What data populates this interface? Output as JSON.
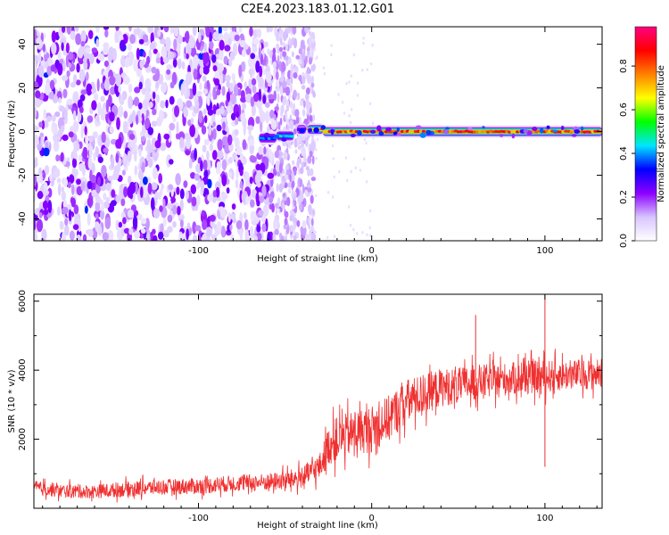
{
  "title": "C2E4.2023.183.01.12.G01",
  "chart_data": [
    {
      "type": "heatmap",
      "xlabel": "Height of straight line (km)",
      "ylabel": "Frequency (Hz)",
      "xlim": [
        -195,
        133
      ],
      "ylim": [
        -50,
        48
      ],
      "x_ticks": [
        "-100",
        "0",
        "100"
      ],
      "x_tick_values": [
        -100,
        0,
        100
      ],
      "y_ticks": [
        "-40",
        "-20",
        "0",
        "20",
        "40"
      ],
      "y_tick_values": [
        -40,
        -20,
        0,
        20,
        40
      ],
      "noise_region_x": [
        -195,
        -33
      ],
      "dense_noise_region_x": [
        -195,
        -55
      ],
      "signal_line_y": 0,
      "signal_segments": [
        {
          "x0": -65,
          "x1": -55,
          "y": -3,
          "amp": 0.45
        },
        {
          "x0": -55,
          "x1": -45,
          "y": -2,
          "amp": 0.5
        },
        {
          "x0": -43,
          "x1": -38,
          "y": 1,
          "amp": 0.3
        },
        {
          "x0": -37,
          "x1": -28,
          "y": 1,
          "amp": 0.85
        },
        {
          "x0": -28,
          "x1": 133,
          "y": 0,
          "amp": 0.95
        }
      ],
      "colorbar": {
        "label": "Normalized spectral amplitude",
        "ticks": [
          "0.0",
          "0.2",
          "0.4",
          "0.6",
          "0.8"
        ],
        "tick_values": [
          0.0,
          0.2,
          0.4,
          0.6,
          0.8
        ],
        "range": [
          0,
          0.98
        ],
        "colors": [
          "#ffffff",
          "#d8c4ff",
          "#8c00ff",
          "#0000ff",
          "#00e5ff",
          "#00ff00",
          "#ffff00",
          "#ff8000",
          "#ff0000",
          "#ff0080"
        ]
      }
    },
    {
      "type": "line",
      "xlabel": "Height of straight line (km)",
      "ylabel": "SNR (10 * v/v)",
      "xlim": [
        -195,
        133
      ],
      "ylim": [
        0,
        6200
      ],
      "x_ticks": [
        "-100",
        "0",
        "100"
      ],
      "x_tick_values": [
        -100,
        0,
        100
      ],
      "y_ticks": [
        "2000",
        "4000",
        "6000"
      ],
      "y_tick_values": [
        2000,
        4000,
        6000
      ],
      "color": "#f03030",
      "series": [
        {
          "x": [
            -195,
            -180,
            -160,
            -140,
            -120,
            -100,
            -80,
            -60,
            -50,
            -40,
            -30,
            -25,
            -20,
            -10,
            0,
            10,
            20,
            30,
            40,
            50,
            60,
            70,
            80,
            90,
            100,
            110,
            120,
            133
          ],
          "values": [
            600,
            500,
            480,
            560,
            620,
            640,
            720,
            760,
            800,
            900,
            1200,
            1800,
            2000,
            2200,
            2300,
            2600,
            3100,
            3300,
            3500,
            3550,
            3650,
            3700,
            3750,
            3780,
            3820,
            3850,
            3880,
            3900
          ],
          "noise_amplitude": [
            250,
            250,
            250,
            280,
            280,
            300,
            300,
            320,
            350,
            400,
            500,
            700,
            800,
            800,
            850,
            850,
            800,
            750,
            700,
            650,
            650,
            600,
            600,
            600,
            600,
            550,
            550,
            550
          ]
        }
      ],
      "spikes": [
        {
          "x": 60,
          "y": 5600
        },
        {
          "x": 100,
          "y": 6200
        },
        {
          "x": 100,
          "y": 1200
        }
      ]
    }
  ]
}
